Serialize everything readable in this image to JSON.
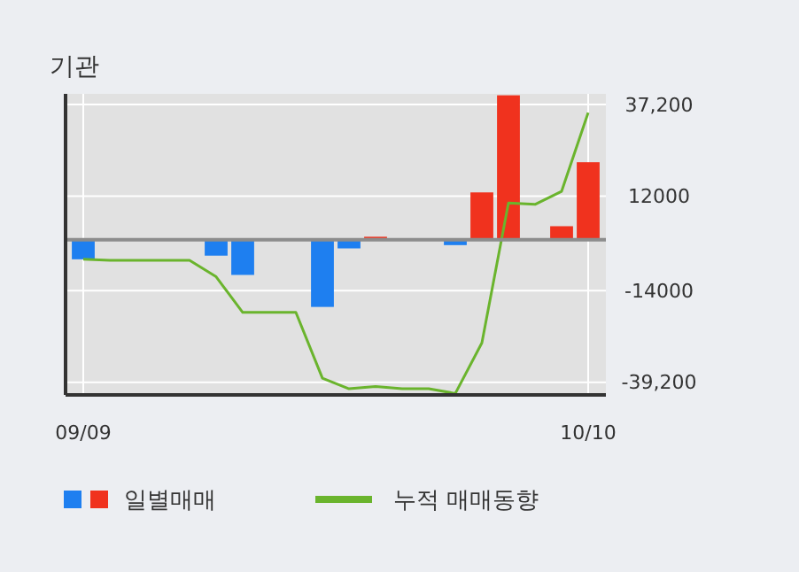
{
  "chart_data": {
    "type": "bar",
    "title": "기관",
    "categories": [
      "09/09",
      null,
      null,
      null,
      null,
      null,
      null,
      null,
      null,
      null,
      null,
      null,
      null,
      null,
      null,
      null,
      null,
      null,
      null,
      "10/10"
    ],
    "series": [
      {
        "name": "일별매매",
        "colors": [
          "#1e7ff0",
          "#1e7ff0",
          "#1e7ff0",
          "#1e7ff0",
          "#1e7ff0",
          "#1e7ff0",
          "#1e7ff0",
          "#1e7ff0",
          "#1e7ff0",
          "#1e7ff0",
          "#1e7ff0",
          "#f0321e",
          "#1e7ff0",
          "#1e7ff0",
          "#1e7ff0",
          "#f0321e",
          "#f0321e",
          "#f0321e",
          "#f0321e",
          "#f0321e"
        ],
        "values": [
          -5400,
          0,
          0,
          0,
          0,
          -4400,
          -9700,
          0,
          0,
          -18500,
          -2400,
          800,
          0,
          0,
          -1500,
          13000,
          39700,
          0,
          3700,
          21300
        ]
      },
      {
        "name": "누적 매매동향",
        "type": "line",
        "color": "#6ab42d",
        "values": [
          -5400,
          -5700,
          -5700,
          -5700,
          -5700,
          -10200,
          -20000,
          -20000,
          -20000,
          -38100,
          -41000,
          -40400,
          -41000,
          -41000,
          -42300,
          -28400,
          10100,
          9700,
          13300,
          34900
        ]
      }
    ],
    "ylim": [
      -42700,
      40100
    ],
    "yticks": [
      {
        "value": 37200,
        "label": "37,200"
      },
      {
        "value": 12000,
        "label": "12000"
      },
      {
        "value": -14000,
        "label": "-14000"
      },
      {
        "value": -39200,
        "label": "-39,200"
      }
    ],
    "grid": true,
    "legend": "bottom"
  }
}
